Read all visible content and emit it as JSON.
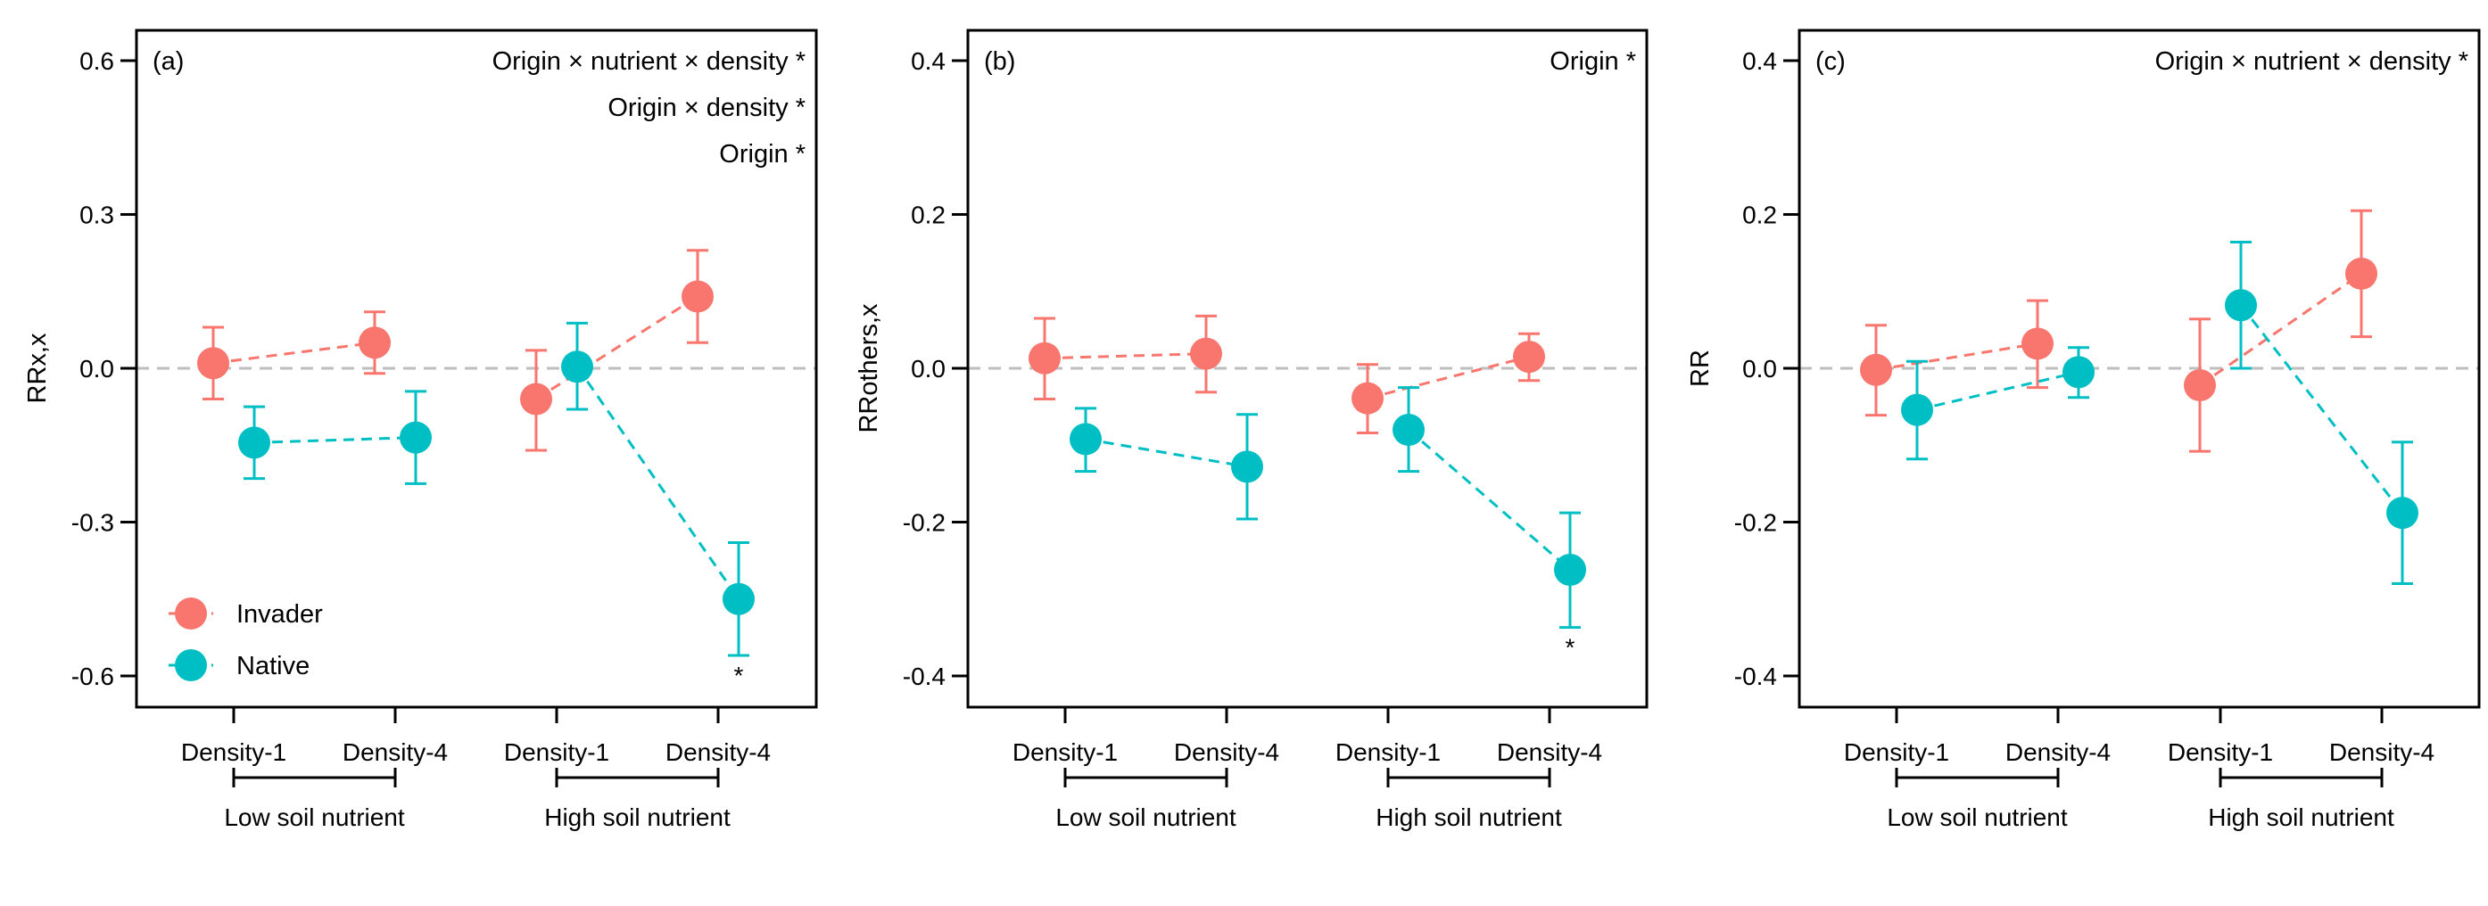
{
  "colors": {
    "invader": "#F8766D",
    "native": "#00BFC4",
    "zero_line": "#BEBEBE"
  },
  "legend": {
    "placement": "bottom-left",
    "panel": 0,
    "entries": [
      "Invader",
      "Native"
    ]
  },
  "chart_data": [
    {
      "type": "scatter",
      "panel_label": "(a)",
      "ylabel": "RRx,x",
      "ylim": [
        -0.66,
        0.66
      ],
      "yticks": [
        "0.6",
        "0.3",
        "0.0",
        "-0.3",
        "-0.6"
      ],
      "ytick_values": [
        0.6,
        0.3,
        0,
        -0.3,
        -0.6
      ],
      "categories": [
        "Density-1",
        "Density-4",
        "Density-1",
        "Density-4"
      ],
      "groups": [
        "Low soil nutrient",
        "High soil nutrient"
      ],
      "annotations": [
        "Origin × nutrient × density *",
        "Origin × density *",
        "Origin *"
      ],
      "significance": [
        {
          "series": "Native",
          "category_index": 3,
          "label": "*"
        }
      ],
      "series": [
        {
          "name": "Invader",
          "values": [
            0.01,
            0.05,
            -0.06,
            0.14
          ],
          "lower": [
            -0.06,
            -0.01,
            -0.16,
            0.05
          ],
          "upper": [
            0.08,
            0.11,
            0.035,
            0.23
          ]
        },
        {
          "name": "Native",
          "values": [
            -0.145,
            -0.135,
            0.003,
            -0.45
          ],
          "lower": [
            -0.215,
            -0.225,
            -0.08,
            -0.56
          ],
          "upper": [
            -0.075,
            -0.045,
            0.088,
            -0.34
          ]
        }
      ]
    },
    {
      "type": "scatter",
      "panel_label": "(b)",
      "ylabel": "RRothers,x",
      "ylim": [
        -0.44,
        0.44
      ],
      "yticks": [
        "0.4",
        "0.2",
        "0.0",
        "-0.2",
        "-0.4"
      ],
      "ytick_values": [
        0.4,
        0.2,
        0,
        -0.2,
        -0.4
      ],
      "categories": [
        "Density-1",
        "Density-4",
        "Density-1",
        "Density-4"
      ],
      "groups": [
        "Low soil nutrient",
        "High soil nutrient"
      ],
      "annotations": [
        "Origin *"
      ],
      "significance": [
        {
          "series": "Native",
          "category_index": 3,
          "label": "*"
        }
      ],
      "series": [
        {
          "name": "Invader",
          "values": [
            0.013,
            0.019,
            -0.039,
            0.015
          ],
          "lower": [
            -0.04,
            -0.031,
            -0.084,
            -0.016
          ],
          "upper": [
            0.065,
            0.068,
            0.005,
            0.045
          ]
        },
        {
          "name": "Native",
          "values": [
            -0.092,
            -0.128,
            -0.08,
            -0.262
          ],
          "lower": [
            -0.134,
            -0.196,
            -0.134,
            -0.337
          ],
          "upper": [
            -0.052,
            -0.06,
            -0.025,
            -0.188
          ]
        }
      ]
    },
    {
      "type": "scatter",
      "panel_label": "(c)",
      "ylabel": "RR",
      "ylim": [
        -0.44,
        0.44
      ],
      "yticks": [
        "0.4",
        "0.2",
        "0.0",
        "-0.2",
        "-0.4"
      ],
      "ytick_values": [
        0.4,
        0.2,
        0,
        -0.2,
        -0.4
      ],
      "categories": [
        "Density-1",
        "Density-4",
        "Density-1",
        "Density-4"
      ],
      "groups": [
        "Low soil nutrient",
        "High soil nutrient"
      ],
      "annotations": [
        "Origin × nutrient × density *"
      ],
      "significance": [],
      "series": [
        {
          "name": "Invader",
          "values": [
            -0.002,
            0.032,
            -0.022,
            0.123
          ],
          "lower": [
            -0.061,
            -0.025,
            -0.108,
            0.041
          ],
          "upper": [
            0.056,
            0.088,
            0.064,
            0.205
          ]
        },
        {
          "name": "Native",
          "values": [
            -0.054,
            -0.005,
            0.082,
            -0.188
          ],
          "lower": [
            -0.118,
            -0.038,
            0.0,
            -0.28
          ],
          "upper": [
            0.009,
            0.027,
            0.164,
            -0.096
          ]
        }
      ]
    }
  ]
}
